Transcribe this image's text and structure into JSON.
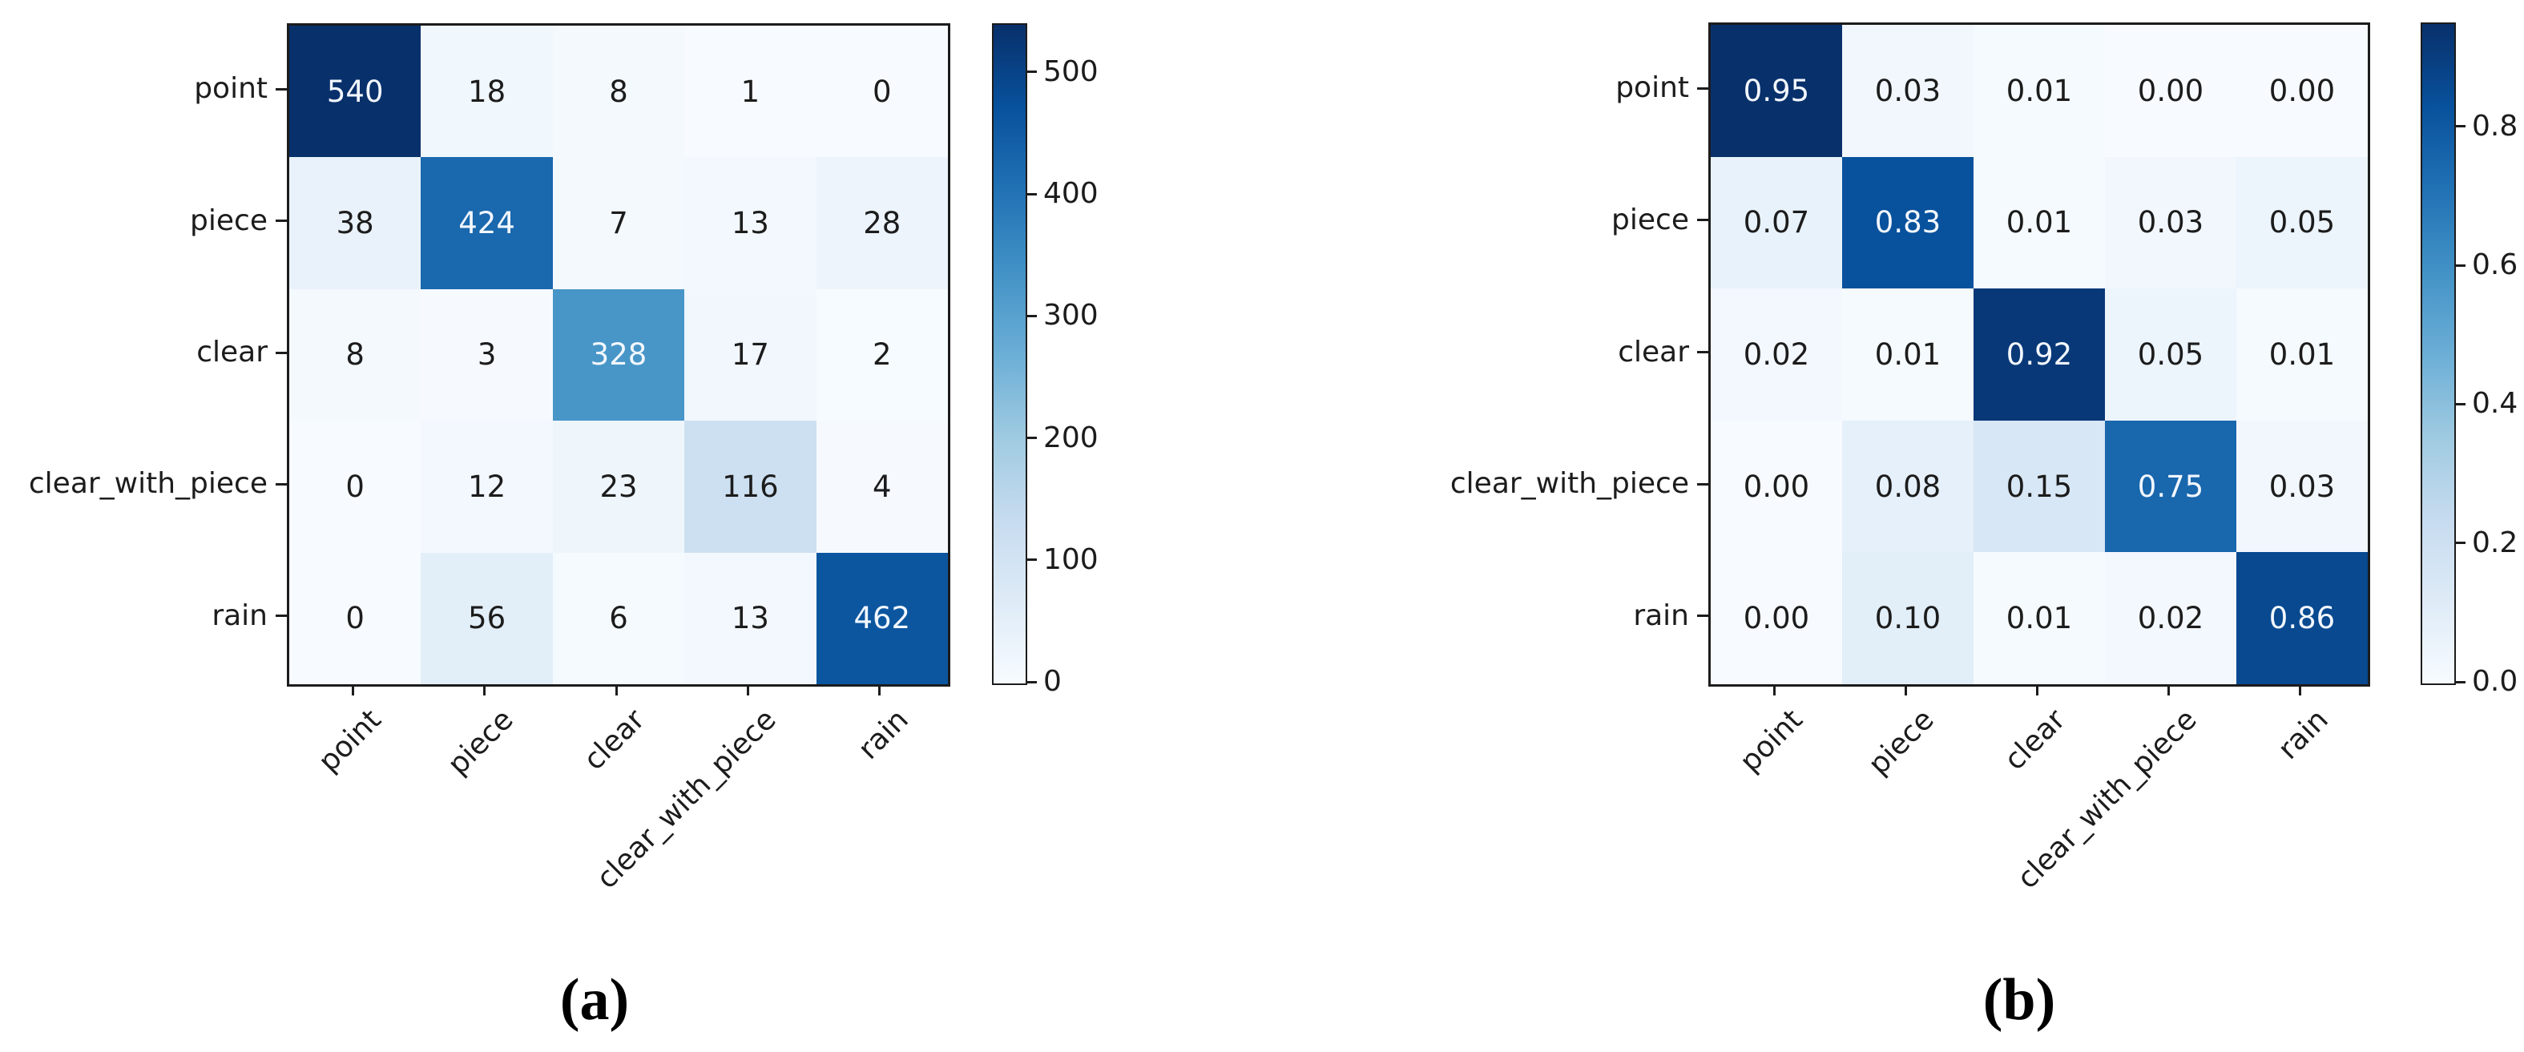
{
  "figure": {
    "description": "Two confusion-matrix heatmaps side by side",
    "captions": {
      "a": "(a)",
      "b": "(b)"
    }
  },
  "colors": {
    "blues_stops": [
      "#f7fbff",
      "#deebf7",
      "#c6dbef",
      "#9ecae1",
      "#6baed6",
      "#4292c6",
      "#2171b5",
      "#08519c",
      "#08306b"
    ],
    "axis": "#1c1c1c",
    "text_dark": "#1c1c1c",
    "text_light": "#f2f7fd",
    "background": "#ffffff"
  },
  "chart_data": [
    {
      "id": "a",
      "type": "heatmap",
      "caption": "(a)",
      "title": "",
      "x_labels": [
        "point",
        "piece",
        "clear",
        "clear_with_piece",
        "rain"
      ],
      "y_labels": [
        "point",
        "piece",
        "clear",
        "clear_with_piece",
        "rain"
      ],
      "matrix": [
        [
          540,
          18,
          8,
          1,
          0
        ],
        [
          38,
          424,
          7,
          13,
          28
        ],
        [
          8,
          3,
          328,
          17,
          2
        ],
        [
          0,
          12,
          23,
          116,
          4
        ],
        [
          0,
          56,
          6,
          13,
          462
        ]
      ],
      "vmin": 0,
      "vmax": 540,
      "value_decimals": 0,
      "colormap": "Blues",
      "colorbar_ticks": [
        0,
        100,
        200,
        300,
        400,
        500
      ],
      "colorbar_tick_decimals": 0,
      "legend_position": "right-colorbar",
      "grid": false
    },
    {
      "id": "b",
      "type": "heatmap",
      "caption": "(b)",
      "title": "",
      "x_labels": [
        "point",
        "piece",
        "clear",
        "clear_with_piece",
        "rain"
      ],
      "y_labels": [
        "point",
        "piece",
        "clear",
        "clear_with_piece",
        "rain"
      ],
      "matrix": [
        [
          0.95,
          0.03,
          0.01,
          0.0,
          0.0
        ],
        [
          0.07,
          0.83,
          0.01,
          0.03,
          0.05
        ],
        [
          0.02,
          0.01,
          0.92,
          0.05,
          0.01
        ],
        [
          0.0,
          0.08,
          0.15,
          0.75,
          0.03
        ],
        [
          0.0,
          0.1,
          0.01,
          0.02,
          0.86
        ]
      ],
      "vmin": 0,
      "vmax": 0.95,
      "value_decimals": 2,
      "colormap": "Blues",
      "colorbar_ticks": [
        0.0,
        0.2,
        0.4,
        0.6,
        0.8
      ],
      "colorbar_tick_decimals": 1,
      "legend_position": "right-colorbar",
      "grid": false
    }
  ]
}
